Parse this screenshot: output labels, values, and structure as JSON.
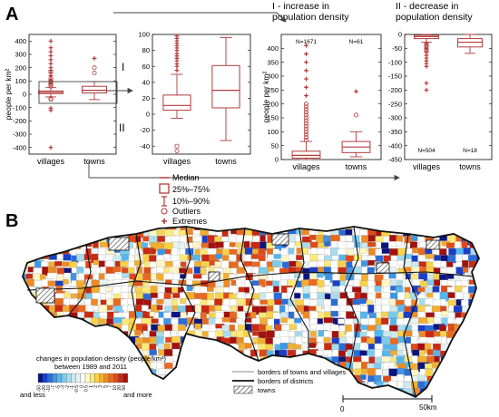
{
  "panel_a_label": "A",
  "panel_b_label": "B",
  "colors": {
    "box": "#b23b3b",
    "median": "#b23b3b",
    "outlier": "#b23b3b",
    "extreme": "#b23b3b",
    "axis": "#222222",
    "arrow": "#444444"
  },
  "roman_i": "I",
  "roman_ii": "II",
  "chart_data": [
    {
      "type": "box",
      "ylabel": "people per km²",
      "ylim": [
        -450,
        450
      ],
      "yticks": [
        -400,
        -300,
        -200,
        -100,
        0,
        100,
        200,
        300,
        400
      ],
      "ytick_labels": [
        "-400",
        "-300",
        "-200",
        "-100",
        "0",
        "100",
        "200",
        "300",
        "400"
      ],
      "categories": [
        "villages",
        "towns"
      ],
      "boxes": [
        {
          "q1": 5,
          "median": 15,
          "q3": 25,
          "whisker_low": -20,
          "whisker_high": 50,
          "outliers": [
            60,
            70,
            80,
            90,
            95,
            -30,
            -40,
            170,
            120,
            100
          ],
          "extremes": [
            -120,
            -105,
            110,
            140,
            160,
            180,
            200,
            230,
            260,
            290,
            320,
            350,
            400,
            -400
          ]
        },
        {
          "q1": 10,
          "median": 30,
          "q3": 60,
          "whisker_low": -40,
          "whisker_high": 95,
          "outliers": [
            200,
            160
          ],
          "extremes": [
            270
          ]
        }
      ]
    },
    {
      "type": "box",
      "ylim": [
        -50,
        100
      ],
      "yticks": [
        -40,
        -20,
        0,
        20,
        40,
        60,
        80,
        100
      ],
      "ytick_labels": [
        "-40",
        "-20",
        "0",
        "20",
        "40",
        "60",
        "80",
        "100"
      ],
      "categories": [
        "villages",
        "towns"
      ],
      "boxes": [
        {
          "q1": 5,
          "median": 11,
          "q3": 24,
          "whisker_low": -5,
          "whisker_high": 50,
          "outliers": [
            -40,
            -46
          ],
          "extremes": [
            55,
            60,
            63,
            67,
            70,
            73,
            76,
            80,
            83,
            86,
            89,
            92,
            95,
            98
          ]
        },
        {
          "q1": 8,
          "median": 30,
          "q3": 61,
          "whisker_low": -33,
          "whisker_high": 96,
          "outliers": [],
          "extremes": []
        }
      ]
    },
    {
      "type": "box",
      "title": "I - increase in population density",
      "ylabel": "people per km²",
      "ylim": [
        0,
        450
      ],
      "yticks": [
        0,
        50,
        100,
        150,
        200,
        250,
        300,
        350,
        400
      ],
      "ytick_labels": [
        "0",
        "50",
        "100",
        "150",
        "200",
        "250",
        "300",
        "350",
        "400"
      ],
      "categories": [
        "villages",
        "towns"
      ],
      "counts": [
        "N=1671",
        "N=61"
      ],
      "boxes": [
        {
          "q1": 5,
          "median": 15,
          "q3": 30,
          "whisker_low": 0,
          "whisker_high": 65,
          "outliers": [
            70,
            80,
            90,
            100,
            110,
            120,
            130,
            140,
            150,
            160,
            170,
            180,
            190,
            200
          ],
          "extremes": [
            230,
            260,
            290,
            320,
            350,
            380,
            410
          ]
        },
        {
          "q1": 25,
          "median": 45,
          "q3": 65,
          "whisker_low": 10,
          "whisker_high": 100,
          "outliers": [
            160
          ],
          "extremes": [
            245
          ]
        }
      ]
    },
    {
      "type": "box",
      "title": "II - decrease in population density",
      "ylim": [
        -450,
        0
      ],
      "yticks": [
        -450,
        -400,
        -350,
        -300,
        -250,
        -200,
        -150,
        -100,
        -50,
        0
      ],
      "ytick_labels": [
        "-450",
        "-400",
        "-350",
        "-300",
        "-250",
        "-200",
        "-150",
        "-100",
        "-50",
        "0"
      ],
      "categories": [
        "villages",
        "towns"
      ],
      "counts": [
        "N=504",
        "N=18"
      ],
      "boxes": [
        {
          "q1": -15,
          "median": -8,
          "q3": -3,
          "whisker_low": -28,
          "whisker_high": 0,
          "outliers": [
            -35,
            -40,
            -45,
            -55,
            -60
          ],
          "extremes": [
            -30,
            -50,
            -65,
            -75,
            -85,
            -95,
            -105,
            -115,
            -175,
            -200
          ]
        },
        {
          "q1": -45,
          "median": -28,
          "q3": -15,
          "whisker_low": -68,
          "whisker_high": 0,
          "outliers": [],
          "extremes": []
        }
      ]
    }
  ],
  "legend_a": {
    "items": [
      "Median",
      "25%–75%",
      "10%–90%",
      "Outliers",
      "Extremes"
    ]
  },
  "map": {
    "colorbar_title_line1": "changes in population density (people/km²)",
    "colorbar_title_line2": "between 1989 and 2011",
    "colorbar_ticks": [
      "-50",
      "-20",
      "-10",
      "-7",
      "-5",
      "-3",
      "-2",
      "-1",
      "-0.5",
      "0",
      "0.5",
      "1",
      "2",
      "3",
      "5",
      "7",
      "10",
      "20",
      "50"
    ],
    "colorbar_colors": [
      "#0a1580",
      "#1a3fc4",
      "#2a6cd8",
      "#3d95e6",
      "#55b6ee",
      "#7ccbee",
      "#a8dcec",
      "#cce9ee",
      "#e6f3f3",
      "#ffffff",
      "#fff6c8",
      "#fde97a",
      "#f8d24a",
      "#f3ae31",
      "#ee8a25",
      "#e86a1e",
      "#de4a18",
      "#c92a12",
      "#a3110e"
    ],
    "and_less": "and less",
    "and_more": "and more",
    "legend_lines": [
      "borders of towns and villages",
      "borders of districts",
      "towns"
    ],
    "scale_zero": "0",
    "scale_label": "50km"
  }
}
